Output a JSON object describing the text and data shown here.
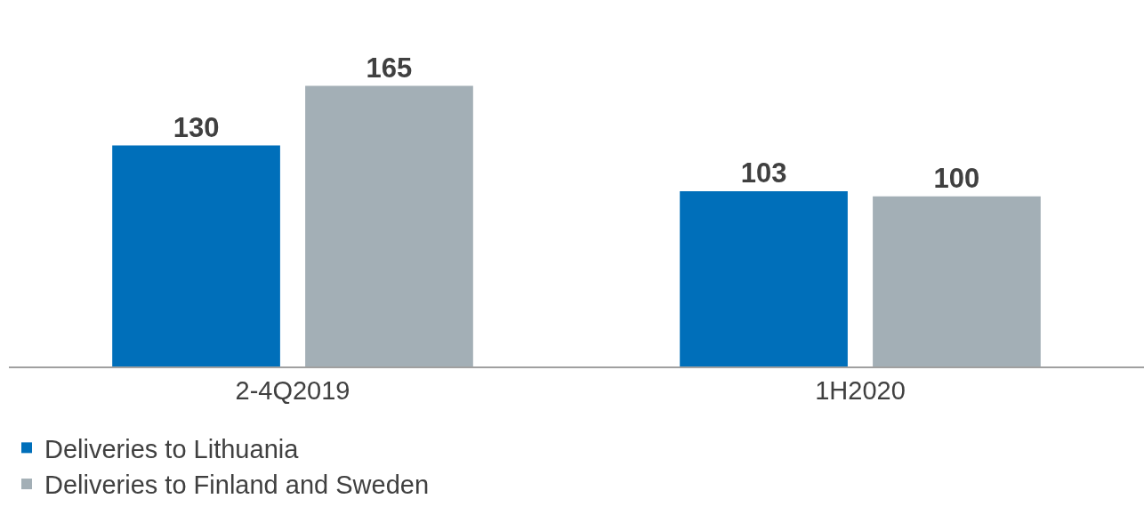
{
  "chart_data": {
    "type": "bar",
    "categories": [
      "2-4Q2019",
      "1H2020"
    ],
    "series": [
      {
        "name": "Deliveries to Lithuania",
        "color": "#006fba",
        "values": [
          130,
          103
        ]
      },
      {
        "name": "Deliveries to Finland and Sweden",
        "color": "#a3afb6",
        "values": [
          165,
          100
        ]
      }
    ],
    "data_labels": true,
    "legend": "bottom",
    "grid": false
  }
}
